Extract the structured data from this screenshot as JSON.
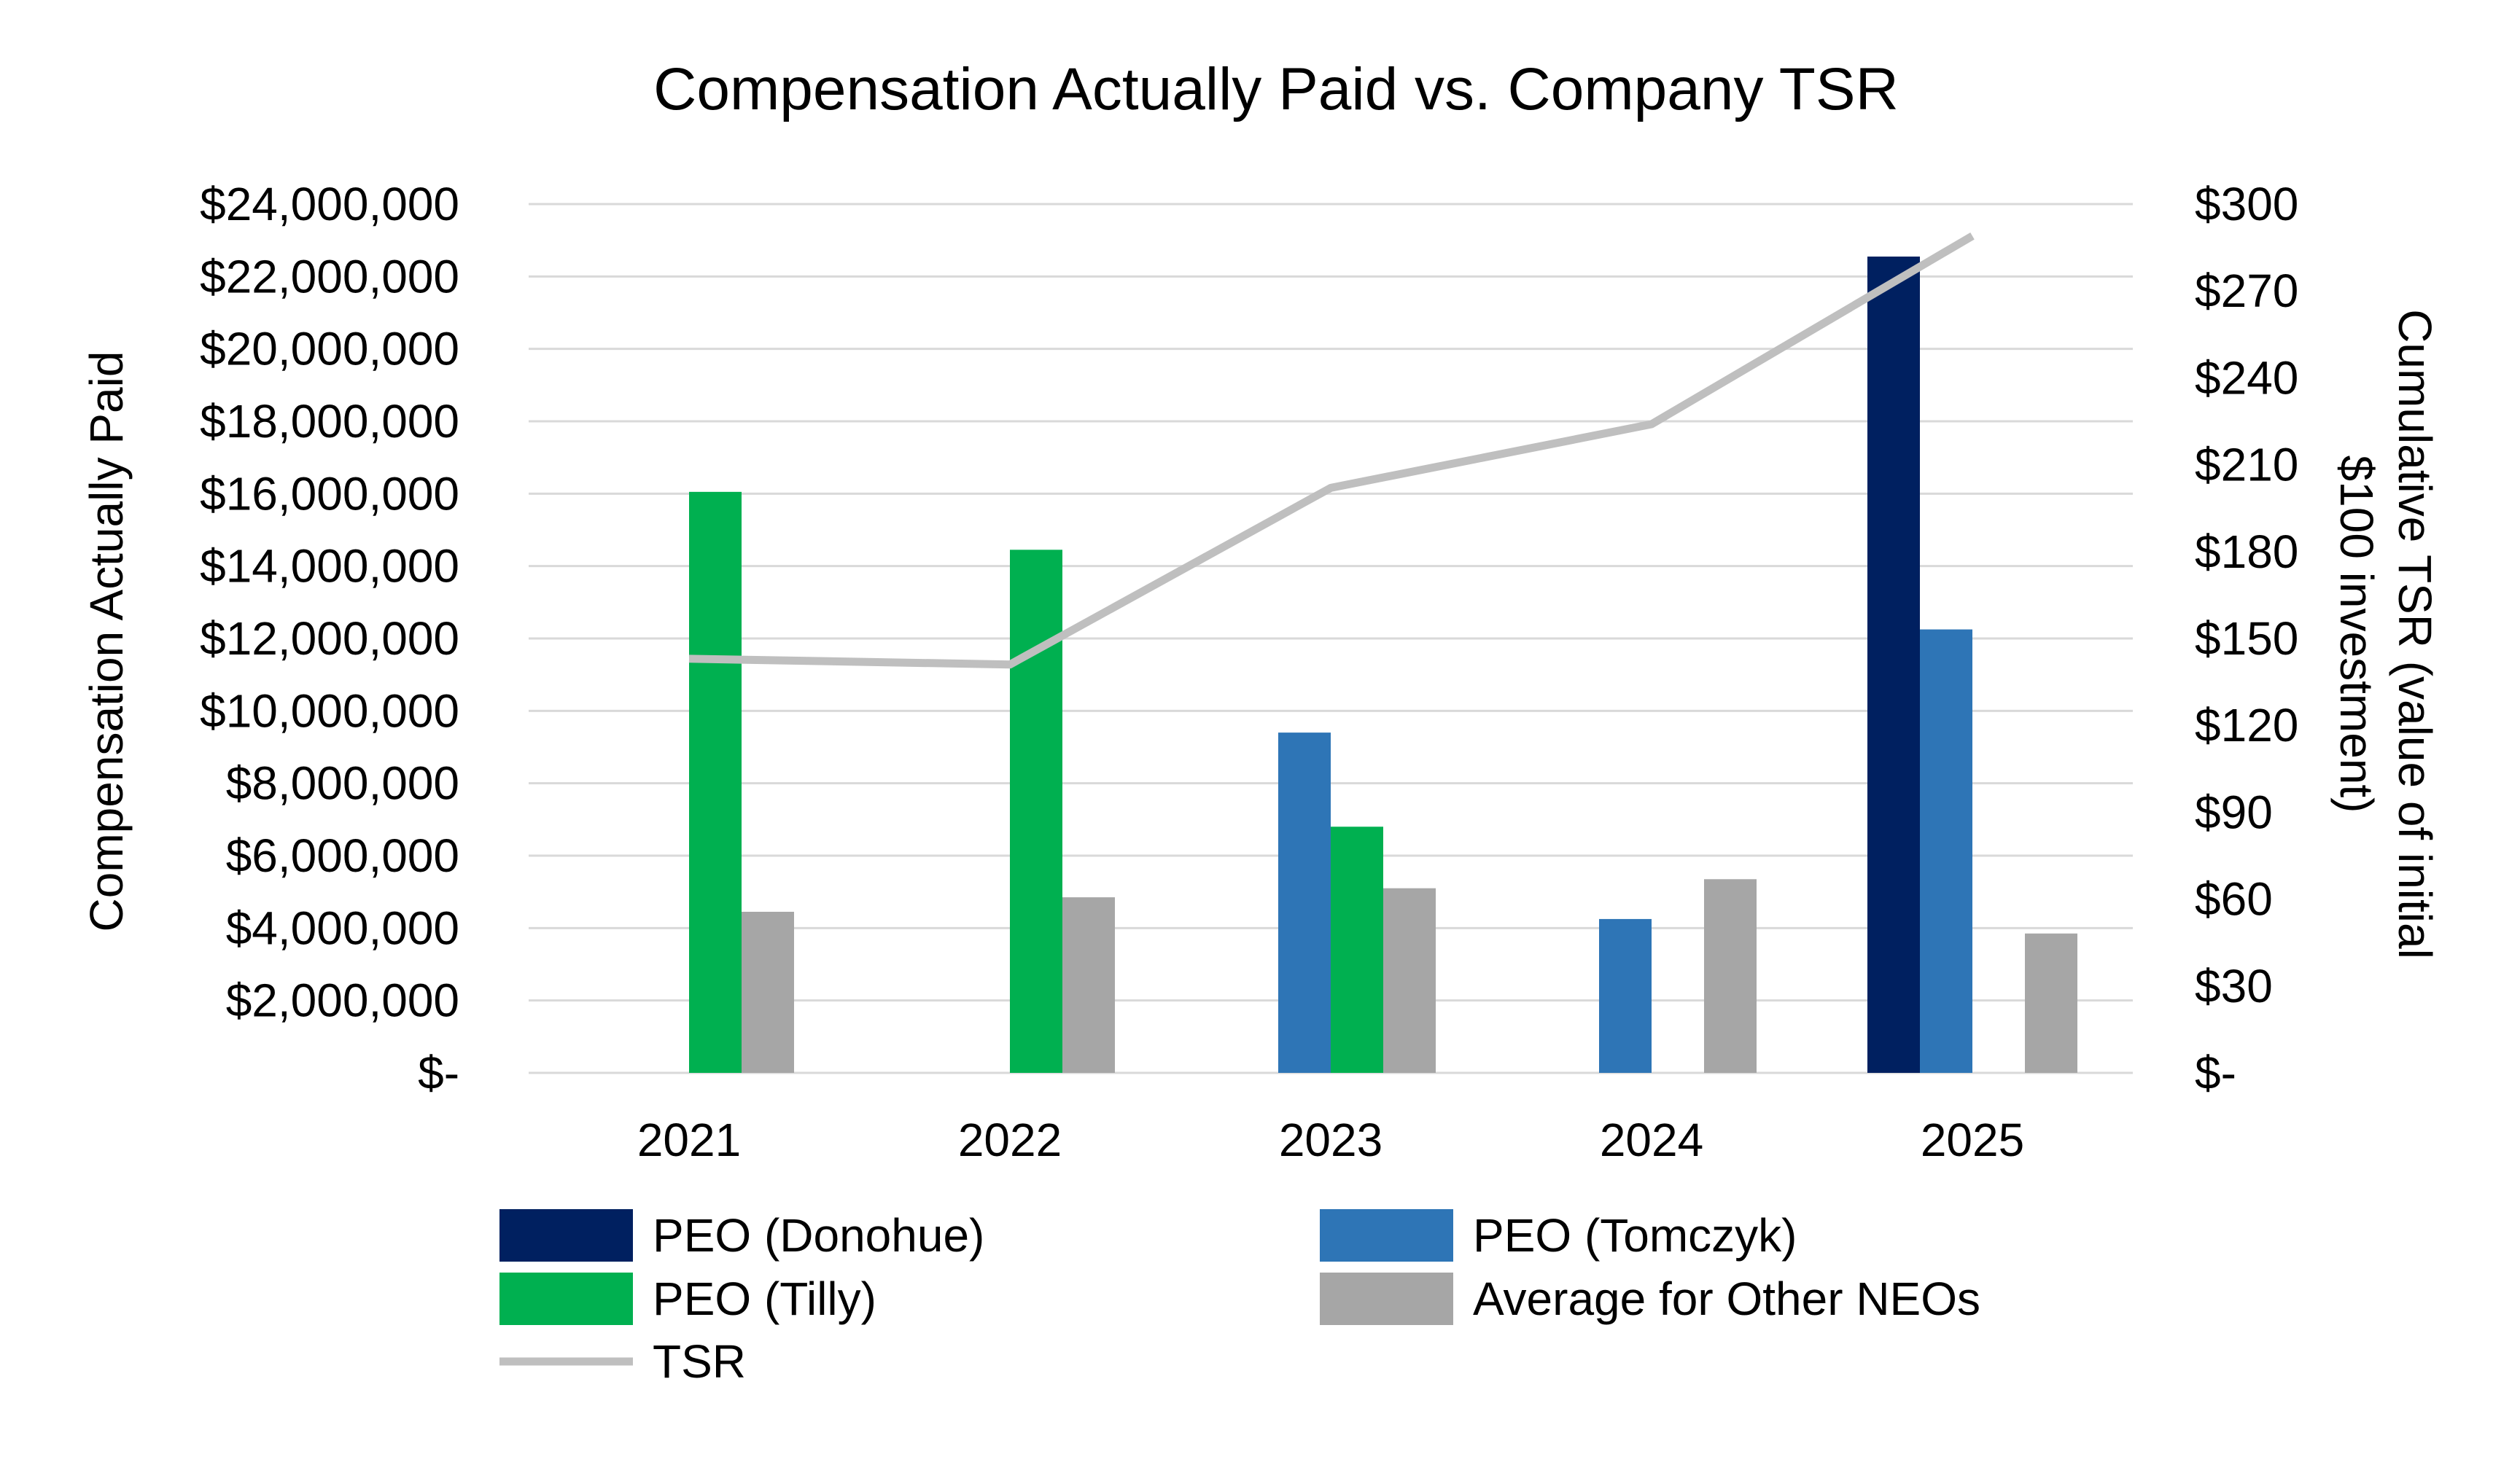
{
  "chart_data": {
    "type": "bar",
    "title": "Compensation Actually Paid vs. Company TSR",
    "ylabel": "Compensation Actually Paid",
    "y2label_lines": [
      "Cumulative TSR (value of initial",
      "$100 investment)"
    ],
    "categories": [
      "2021",
      "2022",
      "2023",
      "2024",
      "2025"
    ],
    "ylim": [
      0,
      24000000
    ],
    "y_ticks": [
      {
        "value": 0,
        "label": "$-"
      },
      {
        "value": 2000000,
        "label": "$2,000,000"
      },
      {
        "value": 4000000,
        "label": "$4,000,000"
      },
      {
        "value": 6000000,
        "label": "$6,000,000"
      },
      {
        "value": 8000000,
        "label": "$8,000,000"
      },
      {
        "value": 10000000,
        "label": "$10,000,000"
      },
      {
        "value": 12000000,
        "label": "$12,000,000"
      },
      {
        "value": 14000000,
        "label": "$14,000,000"
      },
      {
        "value": 16000000,
        "label": "$16,000,000"
      },
      {
        "value": 18000000,
        "label": "$18,000,000"
      },
      {
        "value": 20000000,
        "label": "$20,000,000"
      },
      {
        "value": 22000000,
        "label": "$22,000,000"
      },
      {
        "value": 24000000,
        "label": "$24,000,000"
      }
    ],
    "y2lim": [
      0,
      300
    ],
    "y2_ticks": [
      {
        "value": 0,
        "label": "$-"
      },
      {
        "value": 30,
        "label": "$30"
      },
      {
        "value": 60,
        "label": "$60"
      },
      {
        "value": 90,
        "label": "$90"
      },
      {
        "value": 120,
        "label": "$120"
      },
      {
        "value": 150,
        "label": "$150"
      },
      {
        "value": 180,
        "label": "$180"
      },
      {
        "value": 210,
        "label": "$210"
      },
      {
        "value": 240,
        "label": "$240"
      },
      {
        "value": 270,
        "label": "$270"
      },
      {
        "value": 300,
        "label": "$300"
      }
    ],
    "grid": true,
    "legend_position": "bottom",
    "series": [
      {
        "name": "PEO (Donohue)",
        "type": "bar",
        "axis": "left",
        "color": "#002060",
        "values": [
          null,
          null,
          null,
          null,
          22550000
        ]
      },
      {
        "name": "PEO (Tilly)",
        "type": "bar",
        "axis": "left",
        "color": "#00b050",
        "values": [
          16050000,
          14450000,
          6800000,
          null,
          null
        ]
      },
      {
        "name": "PEO (Tomczyk)",
        "type": "bar",
        "axis": "left",
        "color": "#2e75b6",
        "values": [
          null,
          null,
          9400000,
          4250000,
          12250000
        ]
      },
      {
        "name": "Average for Other NEOs",
        "type": "bar",
        "axis": "left",
        "color": "#a6a6a6",
        "values": [
          4450000,
          4850000,
          5100000,
          5350000,
          3850000
        ]
      },
      {
        "name": "TSR",
        "type": "line",
        "axis": "right",
        "color": "#bfbfbf",
        "values": [
          143,
          141,
          202,
          224,
          289
        ]
      }
    ]
  }
}
